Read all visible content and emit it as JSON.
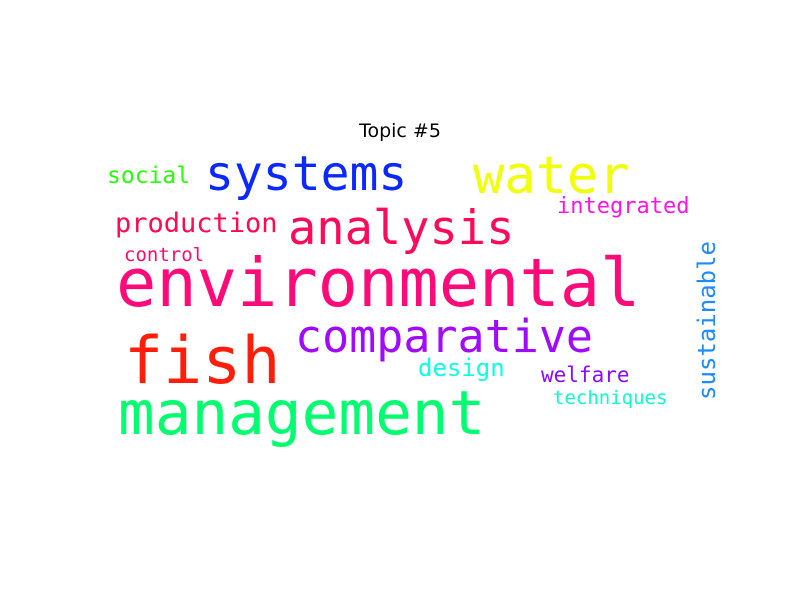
{
  "title": "Topic #5",
  "words": [
    {
      "text": "environmental",
      "color": "#ff0a78"
    },
    {
      "text": "management",
      "color": "#00ff6e"
    },
    {
      "text": "fish",
      "color": "#ff1e0a"
    },
    {
      "text": "comparative",
      "color": "#a20aff"
    },
    {
      "text": "systems",
      "color": "#0a28ff"
    },
    {
      "text": "analysis",
      "color": "#ff0a5a"
    },
    {
      "text": "water",
      "color": "#f0ff0a"
    },
    {
      "text": "production",
      "color": "#ff0a50"
    },
    {
      "text": "social",
      "color": "#28ff0a"
    },
    {
      "text": "integrated",
      "color": "#ff14e6"
    },
    {
      "text": "control",
      "color": "#ff0a6e"
    },
    {
      "text": "design",
      "color": "#0affe6"
    },
    {
      "text": "welfare",
      "color": "#8c0aff"
    },
    {
      "text": "techniques",
      "color": "#0affc8"
    },
    {
      "text": "sustainable",
      "color": "#1e8cff"
    }
  ]
}
